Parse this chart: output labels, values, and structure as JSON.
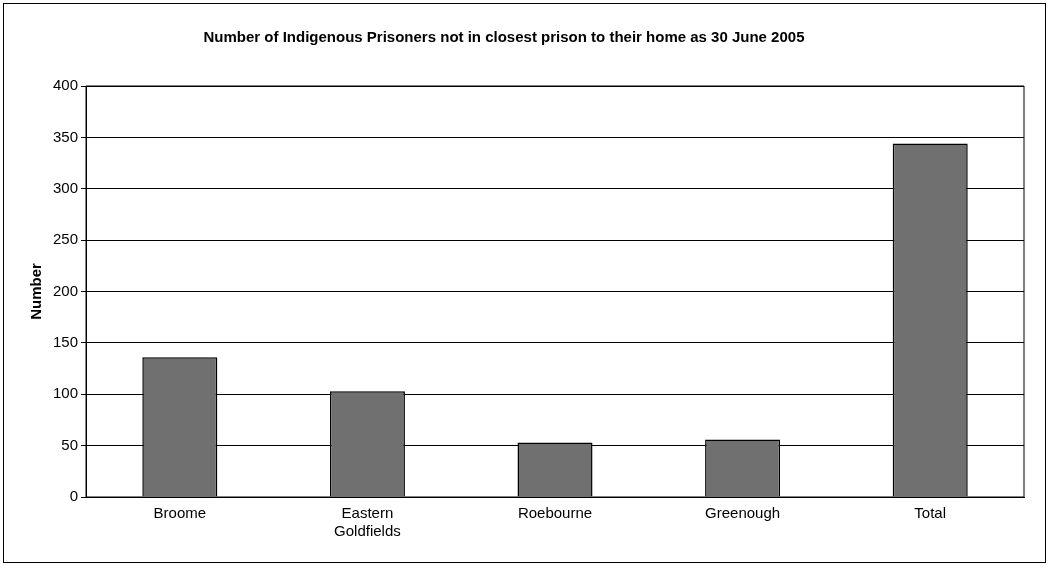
{
  "chart_data": {
    "type": "bar",
    "title": "Number of Indigenous Prisoners not in closest prison to their home as 30 June 2005",
    "ylabel": "Number",
    "categories": [
      "Broome",
      "Eastern Goldfields",
      "Roebourne",
      "Greenough",
      "Total"
    ],
    "values": [
      136,
      103,
      53,
      56,
      344
    ],
    "color": "#707070",
    "ylim": [
      0,
      400
    ],
    "yticks": [
      0,
      50,
      100,
      150,
      200,
      250,
      300,
      350,
      400
    ],
    "grid": "y"
  }
}
